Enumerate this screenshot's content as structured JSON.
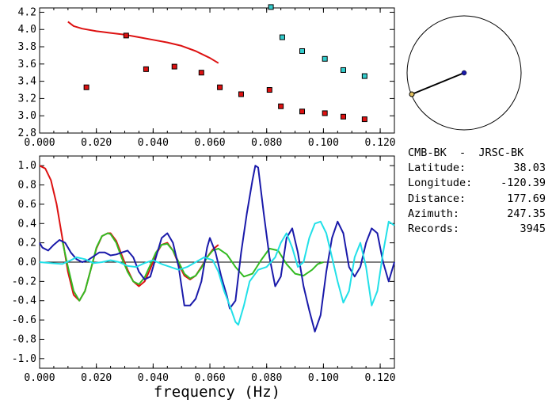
{
  "station_pair": "CMB-BK  -  JRSC-BK",
  "info": [
    {
      "label": "Latitude:",
      "value": "38.03"
    },
    {
      "label": "Longitude:",
      "value": "-120.39"
    },
    {
      "label": "Distance:",
      "value": "177.69"
    },
    {
      "label": "Azimuth:",
      "value": "247.35"
    },
    {
      "label": "Records:",
      "value": "3945"
    }
  ],
  "colors": {
    "red": "#dd1111",
    "cyan": "#33cccc",
    "blue": "#1a1aaa",
    "green": "#33bb22",
    "bright_cyan": "#22e0e8"
  },
  "chart_data": [
    {
      "type": "scatter",
      "title": "",
      "xlabel": "",
      "ylabel": "",
      "xlim": [
        0.0,
        0.125
      ],
      "ylim": [
        2.8,
        4.25
      ],
      "xticks": [
        "0.000",
        "0.020",
        "0.040",
        "0.060",
        "0.080",
        "0.100",
        "0.120"
      ],
      "yticks": [
        "2.8",
        "3.0",
        "3.2",
        "3.4",
        "3.6",
        "3.8",
        "4.0",
        "4.2"
      ],
      "xtick_values": [
        0.0,
        0.02,
        0.04,
        0.06,
        0.08,
        0.1,
        0.12
      ],
      "ytick_values": [
        2.8,
        3.0,
        3.2,
        3.4,
        3.6,
        3.8,
        4.0,
        4.2
      ],
      "series": [
        {
          "kind": "line",
          "color": "#dd1111",
          "x": [
            0.01,
            0.012,
            0.015,
            0.02,
            0.025,
            0.03,
            0.035,
            0.04,
            0.045,
            0.05,
            0.055,
            0.06,
            0.063
          ],
          "y": [
            4.09,
            4.04,
            4.01,
            3.98,
            3.96,
            3.94,
            3.91,
            3.88,
            3.85,
            3.81,
            3.75,
            3.67,
            3.61
          ]
        },
        {
          "kind": "points",
          "color": "#dd1111",
          "x": [
            0.0165,
            0.0305,
            0.0375,
            0.0475,
            0.057,
            0.0635,
            0.071,
            0.081,
            0.085,
            0.0925,
            0.1005,
            0.107,
            0.1145
          ],
          "y": [
            3.33,
            3.93,
            3.54,
            3.57,
            3.5,
            3.33,
            3.25,
            3.3,
            3.11,
            3.05,
            3.03,
            2.99,
            2.96
          ]
        },
        {
          "kind": "points",
          "color": "#33cccc",
          "x": [
            0.0815,
            0.0855,
            0.0925,
            0.1005,
            0.107,
            0.1145
          ],
          "y": [
            4.26,
            3.91,
            3.75,
            3.66,
            3.53,
            3.46
          ]
        }
      ]
    },
    {
      "type": "line",
      "title": "",
      "xlabel": "frequency (Hz)",
      "ylabel": "",
      "xlim": [
        0.0,
        0.125
      ],
      "ylim": [
        -1.1,
        1.1
      ],
      "xticks": [
        "0.000",
        "0.020",
        "0.040",
        "0.060",
        "0.080",
        "0.100",
        "0.120"
      ],
      "yticks": [
        "1.0",
        "0.8",
        "0.6",
        "0.4",
        "0.2",
        "0.0",
        "-0.2",
        "-0.4",
        "-0.6",
        "-0.8",
        "-1.0"
      ],
      "xtick_values": [
        0.0,
        0.02,
        0.04,
        0.06,
        0.08,
        0.1,
        0.12
      ],
      "ytick_values": [
        1.0,
        0.8,
        0.6,
        0.4,
        0.2,
        0.0,
        -0.2,
        -0.4,
        -0.6,
        -0.8,
        -1.0
      ],
      "series": [
        {
          "color": "#dd1111",
          "x": [
            0.0,
            0.002,
            0.004,
            0.006,
            0.008,
            0.01,
            0.012,
            0.014,
            0.016,
            0.018,
            0.02,
            0.022,
            0.024,
            0.025,
            0.027,
            0.029,
            0.031,
            0.033,
            0.035,
            0.037,
            0.039,
            0.041,
            0.043,
            0.045,
            0.047,
            0.049,
            0.051,
            0.053,
            0.055,
            0.057,
            0.059,
            0.061,
            0.063
          ],
          "y": [
            1.0,
            0.97,
            0.85,
            0.6,
            0.25,
            -0.1,
            -0.34,
            -0.4,
            -0.3,
            -0.08,
            0.14,
            0.27,
            0.3,
            0.3,
            0.22,
            0.07,
            -0.08,
            -0.2,
            -0.25,
            -0.2,
            -0.07,
            0.08,
            0.18,
            0.2,
            0.12,
            -0.02,
            -0.14,
            -0.18,
            -0.14,
            -0.05,
            0.05,
            0.13,
            0.18
          ]
        },
        {
          "color": "#33bb22",
          "x": [
            0.008,
            0.01,
            0.012,
            0.014,
            0.016,
            0.018,
            0.02,
            0.022,
            0.024,
            0.025,
            0.027,
            0.029,
            0.031,
            0.033,
            0.035,
            0.037,
            0.039,
            0.041,
            0.043,
            0.045,
            0.047,
            0.049,
            0.051,
            0.053,
            0.055,
            0.057,
            0.059,
            0.061,
            0.063,
            0.066,
            0.069,
            0.072,
            0.075,
            0.078,
            0.081,
            0.084,
            0.087,
            0.09,
            0.093,
            0.096,
            0.098,
            0.1
          ],
          "y": [
            0.22,
            -0.05,
            -0.3,
            -0.4,
            -0.3,
            -0.08,
            0.15,
            0.27,
            0.3,
            0.29,
            0.2,
            0.04,
            -0.1,
            -0.2,
            -0.23,
            -0.16,
            -0.03,
            0.1,
            0.18,
            0.19,
            0.12,
            0.0,
            -0.12,
            -0.17,
            -0.14,
            -0.06,
            0.05,
            0.12,
            0.14,
            0.08,
            -0.05,
            -0.15,
            -0.12,
            0.02,
            0.14,
            0.12,
            -0.02,
            -0.12,
            -0.14,
            -0.08,
            -0.02,
            0.0
          ]
        },
        {
          "color": "#1a1aaa",
          "x": [
            0.0,
            0.001,
            0.003,
            0.005,
            0.007,
            0.009,
            0.011,
            0.013,
            0.015,
            0.017,
            0.019,
            0.021,
            0.023,
            0.025,
            0.027,
            0.029,
            0.031,
            0.033,
            0.035,
            0.037,
            0.039,
            0.041,
            0.043,
            0.045,
            0.047,
            0.049,
            0.051,
            0.053,
            0.055,
            0.057,
            0.059,
            0.06,
            0.062,
            0.064,
            0.066,
            0.067,
            0.069,
            0.071,
            0.073,
            0.075,
            0.076,
            0.077,
            0.079,
            0.081,
            0.083,
            0.085,
            0.087,
            0.089,
            0.091,
            0.093,
            0.095,
            0.097,
            0.099,
            0.101,
            0.103,
            0.105,
            0.107,
            0.109,
            0.111,
            0.113,
            0.115,
            0.117,
            0.119,
            0.121,
            0.123,
            0.125
          ],
          "y": [
            0.2,
            0.15,
            0.12,
            0.18,
            0.23,
            0.2,
            0.1,
            0.03,
            0.0,
            0.02,
            0.06,
            0.1,
            0.1,
            0.07,
            0.08,
            0.1,
            0.12,
            0.05,
            -0.1,
            -0.18,
            -0.15,
            0.05,
            0.25,
            0.3,
            0.2,
            -0.05,
            -0.45,
            -0.45,
            -0.38,
            -0.2,
            0.15,
            0.25,
            0.1,
            -0.15,
            -0.35,
            -0.48,
            -0.4,
            0.1,
            0.5,
            0.85,
            1.0,
            0.98,
            0.5,
            0.05,
            -0.25,
            -0.15,
            0.25,
            0.35,
            0.1,
            -0.25,
            -0.5,
            -0.72,
            -0.55,
            -0.1,
            0.25,
            0.42,
            0.3,
            -0.05,
            -0.15,
            -0.05,
            0.2,
            0.35,
            0.3,
            0.0,
            -0.2,
            0.0
          ]
        },
        {
          "color": "#22e0e8",
          "x": [
            0.0,
            0.004,
            0.008,
            0.011,
            0.013,
            0.016,
            0.019,
            0.022,
            0.025,
            0.028,
            0.031,
            0.034,
            0.037,
            0.04,
            0.043,
            0.046,
            0.049,
            0.052,
            0.055,
            0.058,
            0.061,
            0.063,
            0.065,
            0.067,
            0.069,
            0.07,
            0.072,
            0.074,
            0.077,
            0.08,
            0.083,
            0.085,
            0.087,
            0.089,
            0.091,
            0.093,
            0.095,
            0.097,
            0.099,
            0.101,
            0.103,
            0.105,
            0.107,
            0.109,
            0.111,
            0.113,
            0.115,
            0.117,
            0.119,
            0.121,
            0.123,
            0.125
          ],
          "y": [
            0.0,
            -0.01,
            -0.02,
            0.02,
            0.05,
            0.03,
            -0.01,
            0.0,
            0.02,
            0.0,
            -0.04,
            -0.05,
            -0.01,
            0.02,
            -0.02,
            -0.05,
            -0.08,
            -0.05,
            0.0,
            0.05,
            0.02,
            -0.1,
            -0.3,
            -0.45,
            -0.62,
            -0.65,
            -0.45,
            -0.2,
            -0.08,
            -0.05,
            0.05,
            0.2,
            0.3,
            0.15,
            -0.05,
            0.0,
            0.25,
            0.4,
            0.42,
            0.3,
            0.05,
            -0.2,
            -0.42,
            -0.3,
            0.05,
            0.2,
            -0.05,
            -0.45,
            -0.3,
            0.1,
            0.42,
            0.38
          ]
        }
      ]
    }
  ]
}
